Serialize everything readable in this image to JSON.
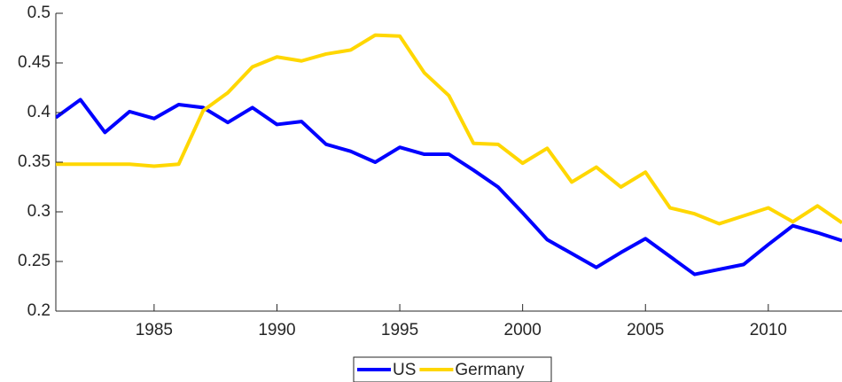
{
  "chart_data": {
    "type": "line",
    "x": [
      1981,
      1982,
      1983,
      1984,
      1985,
      1986,
      1987,
      1988,
      1989,
      1990,
      1991,
      1992,
      1993,
      1994,
      1995,
      1996,
      1997,
      1998,
      1999,
      2000,
      2001,
      2002,
      2003,
      2004,
      2005,
      2006,
      2007,
      2008,
      2009,
      2010,
      2011,
      2012,
      2013
    ],
    "series": [
      {
        "name": "US",
        "color": "#0000ff",
        "values": [
          0.395,
          0.413,
          0.38,
          0.401,
          0.394,
          0.408,
          0.405,
          0.39,
          0.405,
          0.388,
          0.391,
          0.368,
          0.361,
          0.35,
          0.365,
          0.358,
          0.358,
          0.342,
          0.325,
          0.299,
          0.272,
          0.258,
          0.244,
          0.259,
          0.273,
          0.255,
          0.237,
          0.242,
          0.247,
          0.267,
          0.286,
          0.279,
          0.271
        ]
      },
      {
        "name": "Germany",
        "color": "#ffd700",
        "values": [
          0.348,
          0.348,
          0.348,
          0.348,
          0.346,
          0.348,
          0.402,
          0.42,
          0.446,
          0.456,
          0.452,
          0.459,
          0.463,
          0.478,
          0.477,
          0.44,
          0.417,
          0.369,
          0.368,
          0.349,
          0.364,
          0.33,
          0.345,
          0.325,
          0.34,
          0.304,
          0.298,
          0.288,
          0.296,
          0.304,
          0.29,
          0.306,
          0.289
        ]
      }
    ],
    "xlim": [
      1981,
      2013
    ],
    "xticks": [
      1985,
      1990,
      1995,
      2000,
      2005,
      2010
    ],
    "ylim": [
      0.2,
      0.5
    ],
    "yticks": [
      0.2,
      0.25,
      0.3,
      0.35,
      0.4,
      0.45,
      0.5
    ],
    "legend": "bottom"
  }
}
